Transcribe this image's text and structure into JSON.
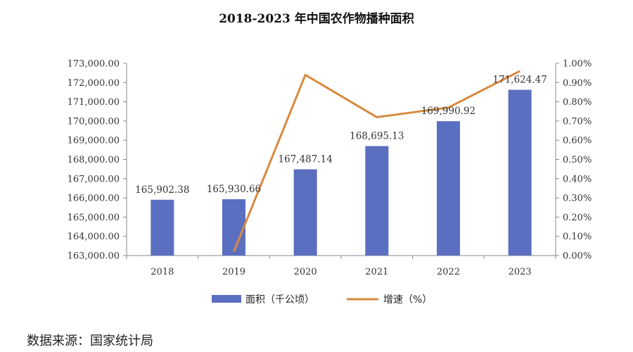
{
  "chart_data": {
    "type": "bar",
    "title": "2018-2023 年中国农作物播种面积",
    "categories": [
      "2018",
      "2019",
      "2020",
      "2021",
      "2022",
      "2023"
    ],
    "series": [
      {
        "name": "面积（千公顷）",
        "kind": "bar",
        "axis": "left",
        "color": "#5B6FC0",
        "values": [
          165902.38,
          165930.66,
          167487.14,
          168695.13,
          169990.92,
          171624.47
        ],
        "labels": [
          "165,902.38",
          "165,930.66",
          "167,487.14",
          "168,695.13",
          "169,990.92",
          "171,624.47"
        ]
      },
      {
        "name": "增速（%）",
        "kind": "line",
        "axis": "right",
        "color": "#D9893E",
        "values": [
          null,
          0.02,
          0.94,
          0.72,
          0.77,
          0.96
        ]
      }
    ],
    "ylim_left": [
      163000,
      173000
    ],
    "yticks_left": [
      "163,000.00",
      "164,000.00",
      "165,000.00",
      "166,000.00",
      "167,000.00",
      "168,000.00",
      "169,000.00",
      "170,000.00",
      "171,000.00",
      "172,000.00",
      "173,000.00"
    ],
    "ylim_right": [
      0,
      1.0
    ],
    "yticks_right": [
      "0.00%",
      "0.10%",
      "0.20%",
      "0.30%",
      "0.40%",
      "0.50%",
      "0.60%",
      "0.70%",
      "0.80%",
      "0.90%",
      "1.00%"
    ],
    "grid": false,
    "legend_position": "bottom"
  },
  "source": "数据来源：国家统计局"
}
